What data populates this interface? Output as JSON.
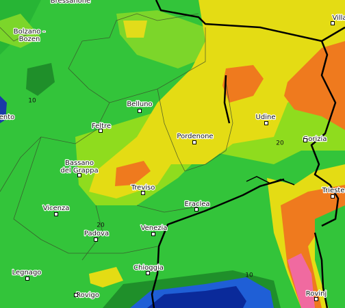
{
  "cities": [
    {
      "lines": [
        "Bressanone"
      ]
    },
    {
      "lines": [
        "Bolzano -",
        "Bozen"
      ]
    },
    {
      "lines": [
        "ento"
      ]
    },
    {
      "lines": [
        "Villa"
      ]
    },
    {
      "lines": [
        "Belluno"
      ]
    },
    {
      "lines": [
        "Feltre"
      ]
    },
    {
      "lines": [
        "Bassano",
        "del Grappa"
      ]
    },
    {
      "lines": [
        "Treviso"
      ]
    },
    {
      "lines": [
        "Vicenza"
      ]
    },
    {
      "lines": [
        "Padova"
      ]
    },
    {
      "lines": [
        "Venezia"
      ]
    },
    {
      "lines": [
        "Chioggia"
      ]
    },
    {
      "lines": [
        "Legnago"
      ]
    },
    {
      "lines": [
        "Rovigo"
      ]
    },
    {
      "lines": [
        "Eraclea"
      ]
    },
    {
      "lines": [
        "Pordenone"
      ]
    },
    {
      "lines": [
        "Udine"
      ]
    },
    {
      "lines": [
        "Gorizia"
      ]
    },
    {
      "lines": [
        "Trieste"
      ]
    },
    {
      "lines": [
        "Rovinj"
      ]
    }
  ],
  "contour_labels": [
    "10",
    "20",
    "20",
    "10"
  ]
}
